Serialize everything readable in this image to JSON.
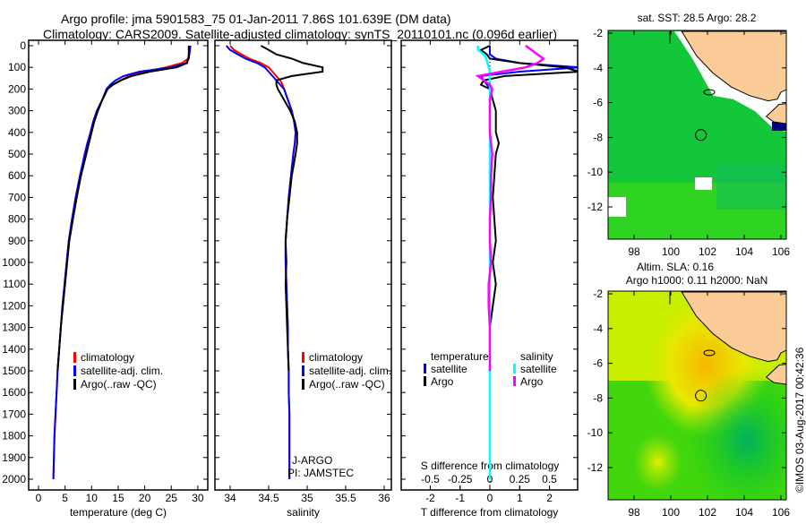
{
  "title_line1": "Argo profile: jma 5901583_75 01-Jan-2011 7.86S 101.639E (DM data)",
  "title_line2": "Climatology: CARS2009. Satellite-adjusted climatology: synTS_20110101.nc (0.096d earlier)",
  "footer": "©IMOS 03-Aug-2017 00:42:36",
  "colors": {
    "climatology": "#ff0000",
    "satellite": "#0000ff",
    "argo": "#000000",
    "sal_satellite": "#00ffff",
    "sal_argo": "#ff00ff"
  },
  "chart_data": [
    {
      "type": "line",
      "id": "temperature",
      "xlabel": "temperature (deg C)",
      "ylabel": "depth",
      "xlim": [
        -1.85,
        31.8
      ],
      "ylim": [
        2050,
        0
      ],
      "xticks": [
        "0",
        "5",
        "10",
        "15",
        "20",
        "25",
        "30"
      ],
      "yticks": [
        "0",
        "100",
        "200",
        "300",
        "400",
        "500",
        "600",
        "700",
        "800",
        "900",
        "1000",
        "1100",
        "1200",
        "1300",
        "1400",
        "1500",
        "1600",
        "1700",
        "1800",
        "1900",
        "2000"
      ],
      "legend": [
        "climatology",
        "satellite-adj. clim.",
        "Argo(..raw -QC)"
      ],
      "depth": [
        0,
        20,
        40,
        60,
        80,
        100,
        120,
        140,
        160,
        180,
        200,
        250,
        300,
        350,
        400,
        450,
        500,
        600,
        700,
        800,
        900,
        1000,
        1100,
        1200,
        1300,
        1400,
        1500,
        1600,
        1700,
        1800,
        1900,
        2000
      ],
      "series": [
        {
          "name": "climatology",
          "values": [
            28.6,
            28.5,
            28.4,
            28.2,
            27,
            24,
            20,
            17,
            15.5,
            14,
            13,
            12,
            11,
            10.3,
            9.8,
            9.2,
            8.7,
            7.8,
            7,
            6.3,
            5.7,
            5.3,
            4.9,
            4.5,
            4.2,
            3.9,
            3.6,
            3.4,
            3.2,
            3,
            2.9,
            2.8
          ]
        },
        {
          "name": "satellite-adj. clim.",
          "values": [
            28.6,
            28.5,
            28.4,
            28.3,
            27.8,
            25,
            19,
            16,
            14.5,
            13.5,
            12.8,
            12,
            11,
            10.3,
            9.8,
            9.2,
            8.7,
            7.8,
            7,
            6.3,
            5.7,
            5.3,
            4.9,
            4.5,
            4.2,
            3.9,
            3.6,
            3.4,
            3.2,
            3,
            2.9,
            2.8
          ]
        },
        {
          "name": "Argo(..raw -QC)",
          "values": [
            28.3,
            28.3,
            28.3,
            28.2,
            28,
            26,
            21,
            17.5,
            15.5,
            14,
            13,
            12,
            11.2,
            10.5,
            10,
            9.5,
            9,
            8,
            7.2,
            6.5,
            5.8,
            5.4,
            5,
            4.6,
            4.2,
            3.9,
            3.6
          ]
        }
      ]
    },
    {
      "type": "line",
      "id": "salinity",
      "xlabel": "salinity",
      "xlim": [
        33.8,
        36.1
      ],
      "ylim": [
        2050,
        0
      ],
      "xticks": [
        "34",
        "34.5",
        "35",
        "35.5",
        "36"
      ],
      "legend": [
        "climatology",
        "satellite-adj. clim.",
        "Argo(..raw -QC)"
      ],
      "annotation": [
        "J-ARGO",
        "PI: JAMSTEC"
      ],
      "depth": [
        0,
        20,
        40,
        60,
        80,
        100,
        120,
        140,
        160,
        180,
        200,
        250,
        300,
        350,
        400,
        450,
        500,
        600,
        700,
        800,
        900,
        1000,
        1100,
        1200,
        1300,
        1400,
        1500,
        1600,
        1700,
        1800,
        1900,
        2000
      ],
      "series": [
        {
          "name": "climatology",
          "values": [
            34.0,
            34.05,
            34.15,
            34.25,
            34.4,
            34.5,
            34.55,
            34.6,
            34.65,
            34.68,
            34.7,
            34.75,
            34.8,
            34.83,
            34.85,
            34.84,
            34.82,
            34.79,
            34.76,
            34.74,
            34.72,
            34.72,
            34.73,
            34.74,
            34.75,
            34.75,
            34.76,
            34.76,
            34.77,
            34.77,
            34.77,
            34.77
          ]
        },
        {
          "name": "satellite-adj. clim.",
          "values": [
            33.95,
            34.0,
            34.1,
            34.2,
            34.35,
            34.45,
            34.5,
            34.55,
            34.6,
            34.65,
            34.7,
            34.75,
            34.8,
            34.83,
            34.85,
            34.84,
            34.82,
            34.79,
            34.76,
            34.74,
            34.72,
            34.72,
            34.73,
            34.74,
            34.75,
            34.75,
            34.76,
            34.76,
            34.77,
            34.77,
            34.77,
            34.77
          ]
        },
        {
          "name": "Argo(..raw -QC)",
          "values": [
            34.4,
            34.5,
            34.6,
            34.8,
            34.95,
            35.2,
            35.2,
            34.8,
            34.6,
            34.6,
            34.62,
            34.7,
            34.78,
            34.84,
            34.87,
            34.87,
            34.85,
            34.8,
            34.77,
            34.74,
            34.72,
            34.73,
            34.72,
            34.73,
            34.74,
            34.75,
            34.76
          ]
        }
      ]
    },
    {
      "type": "line",
      "id": "difference",
      "xlabel": "T difference from climatology",
      "xlabel2": "S difference from climatology",
      "xlim": [
        -3,
        3
      ],
      "xlim2": [
        -0.75,
        0.75
      ],
      "xticks": [
        "-2",
        "-1",
        "0",
        "1",
        "2"
      ],
      "xticks2": [
        "-0.5",
        "-0.25",
        "0",
        "0.25",
        "0.5"
      ],
      "legend_temperature": {
        "title": "temperature",
        "items": [
          "satellite",
          "Argo"
        ]
      },
      "legend_salinity": {
        "title": "salinity",
        "items": [
          "satellite",
          "Argo"
        ]
      },
      "depth": [
        0,
        20,
        40,
        60,
        80,
        100,
        120,
        140,
        160,
        180,
        200,
        250,
        300,
        350,
        400,
        450,
        500,
        600,
        700,
        800,
        900,
        1000,
        1100,
        1200,
        1300,
        1400,
        1500,
        1600,
        1700,
        1800,
        1900,
        2000
      ],
      "series": [
        {
          "name": "T satellite",
          "axis": "T",
          "values": [
            0,
            0,
            0,
            0.2,
            1,
            3,
            1,
            -0.3,
            -0.2,
            -0.1,
            0,
            0,
            0,
            0,
            0,
            0,
            0,
            0,
            0,
            0,
            0,
            0,
            0,
            0,
            0,
            0,
            0,
            0,
            0,
            0,
            0,
            0
          ]
        },
        {
          "name": "T Argo",
          "axis": "T",
          "values": [
            0,
            -0.3,
            -0.1,
            0,
            1,
            2.5,
            3,
            0.5,
            -0.2,
            -0.3,
            0,
            0.1,
            0.2,
            0.2,
            0.2,
            0.3,
            0.2,
            0.15,
            0.1,
            0.15,
            0.2,
            0.1,
            0.2,
            0.1,
            0,
            0,
            0
          ]
        },
        {
          "name": "S satellite",
          "axis": "S",
          "values": [
            -0.1,
            -0.1,
            -0.05,
            -0.03,
            -0.02,
            -0.01,
            0,
            0,
            0,
            0,
            0,
            0,
            0,
            0,
            0,
            0,
            0,
            0,
            0,
            0,
            0,
            0,
            0,
            0,
            0,
            0,
            0,
            0,
            0,
            0,
            0,
            0
          ]
        },
        {
          "name": "S Argo",
          "axis": "S",
          "values": [
            0.3,
            0.35,
            0.4,
            0.45,
            0.4,
            0.3,
            0.1,
            -0.1,
            -0.05,
            0,
            0.02,
            0,
            0,
            0,
            0,
            0.01,
            0.02,
            0.01,
            0.01,
            0,
            0,
            0.01,
            -0.01,
            -0.01,
            0,
            0,
            0
          ]
        }
      ]
    },
    {
      "type": "heatmap",
      "id": "sst-map",
      "title": "sat. SST: 28.5 Argo: 28.2",
      "xticks": [
        "98",
        "100",
        "102",
        "104",
        "106"
      ],
      "yticks": [
        "-2",
        "-4",
        "-6",
        "-8",
        "-10",
        "-12"
      ],
      "xlim": [
        96.6,
        106.8
      ],
      "ylim": [
        -13.8,
        -1.9
      ],
      "profile_location": [
        101.639,
        -7.86
      ]
    },
    {
      "type": "heatmap",
      "id": "sla-map",
      "title": "Altim. SLA: 0.16",
      "subtitle": "Argo h1000: 0.11 h2000: NaN",
      "xticks": [
        "98",
        "100",
        "102",
        "104",
        "106"
      ],
      "yticks": [
        "-2",
        "-4",
        "-6",
        "-8",
        "-10",
        "-12"
      ],
      "xlim": [
        96.6,
        106.8
      ],
      "ylim": [
        -13.8,
        -1.9
      ],
      "profile_location": [
        101.639,
        -7.86
      ]
    }
  ]
}
